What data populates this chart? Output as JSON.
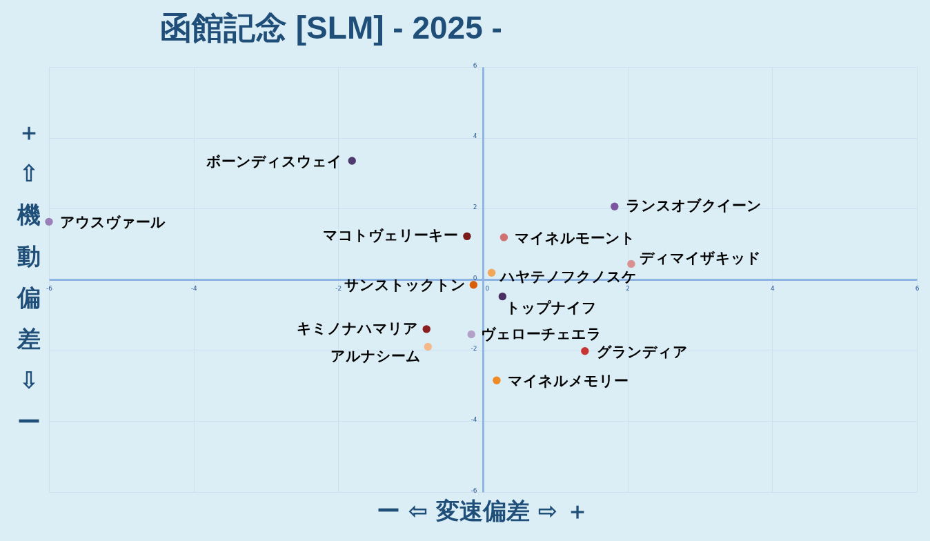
{
  "chart_data": {
    "type": "scatter",
    "title": "函館記念 [SLM] - 2025 -",
    "xlabel": "ー ⇦ 変速偏差 ⇨ ＋",
    "ylabel": "＋ ⇧ 機動偏差 ⇩ ー",
    "xlim": [
      -6,
      6
    ],
    "ylim": [
      -6,
      6
    ],
    "xticks": [
      -6,
      -4,
      -2,
      0,
      2,
      4,
      6
    ],
    "yticks": [
      -6,
      -4,
      -2,
      0,
      2,
      4,
      6
    ],
    "grid": true,
    "marker": "circle",
    "series": [
      {
        "name": "ボーンディスウェイ",
        "color": "#4f3a6e",
        "x": [
          -1.81
        ],
        "values": [
          3.35
        ]
      },
      {
        "name": "ランスオブクイーン",
        "color": "#7b55a0",
        "x": [
          1.82
        ],
        "values": [
          2.06
        ]
      },
      {
        "name": "アウスヴァール",
        "color": "#9b7fb8",
        "x": [
          -6.0
        ],
        "values": [
          1.63
        ]
      },
      {
        "name": "マコトヴェリーキー",
        "color": "#7a1a1a",
        "x": [
          -0.22
        ],
        "values": [
          1.22
        ]
      },
      {
        "name": "マイネルモーント",
        "color": "#d07070",
        "x": [
          0.29
        ],
        "values": [
          1.19
        ]
      },
      {
        "name": "ディマイザキッド",
        "color": "#d99090",
        "x": [
          2.05
        ],
        "values": [
          0.44
        ]
      },
      {
        "name": "ハヤテノフクノスケ",
        "color": "#f2a65a",
        "x": [
          0.12
        ],
        "values": [
          0.19
        ]
      },
      {
        "name": "サンストックトン",
        "color": "#d9600a",
        "x": [
          -0.13
        ],
        "values": [
          -0.15
        ]
      },
      {
        "name": "トップナイフ",
        "color": "#4a3060",
        "x": [
          0.27
        ],
        "values": [
          -0.48
        ]
      },
      {
        "name": "キミノナハマリア",
        "color": "#8b1f1f",
        "x": [
          -0.78
        ],
        "values": [
          -1.4
        ]
      },
      {
        "name": "ヴェローチェエラ",
        "color": "#b3a0c8",
        "x": [
          -0.16
        ],
        "values": [
          -1.55
        ]
      },
      {
        "name": "アルナシーム",
        "color": "#f5b88a",
        "x": [
          -0.76
        ],
        "values": [
          -1.9
        ]
      },
      {
        "name": "グランディア",
        "color": "#c83535",
        "x": [
          1.41
        ],
        "values": [
          -2.02
        ]
      },
      {
        "name": "マイネルメモリー",
        "color": "#f08a25",
        "x": [
          0.19
        ],
        "values": [
          -2.85
        ]
      }
    ]
  }
}
